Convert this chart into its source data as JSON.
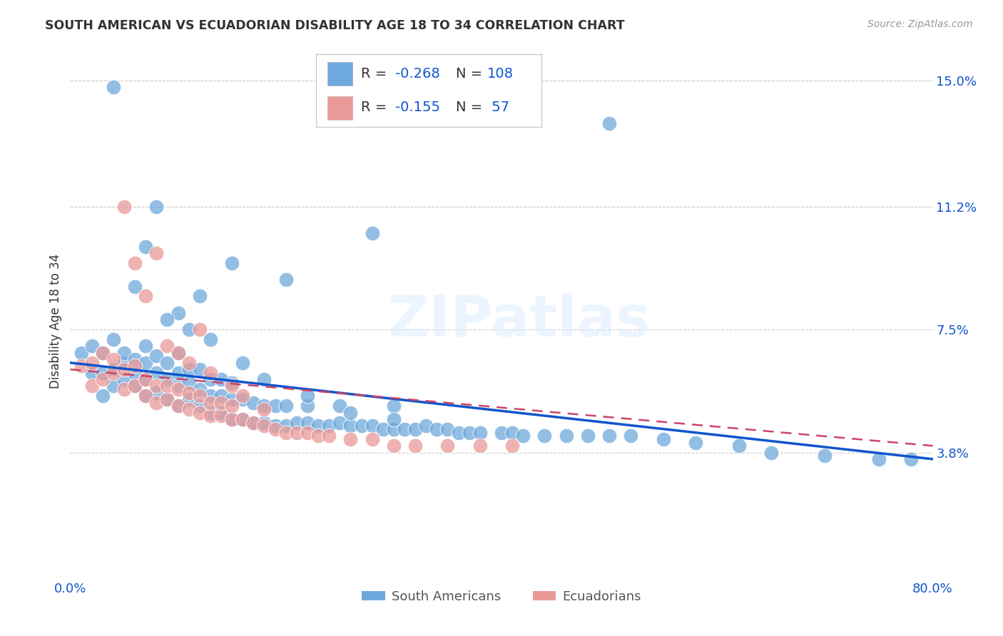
{
  "title": "SOUTH AMERICAN VS ECUADORIAN DISABILITY AGE 18 TO 34 CORRELATION CHART",
  "source": "Source: ZipAtlas.com",
  "ylabel": "Disability Age 18 to 34",
  "xlim": [
    0.0,
    0.8
  ],
  "ylim": [
    0.0,
    0.155
  ],
  "yticks": [
    0.038,
    0.075,
    0.112,
    0.15
  ],
  "ytick_labels": [
    "3.8%",
    "7.5%",
    "11.2%",
    "15.0%"
  ],
  "blue_color": "#6fa8dc",
  "pink_color": "#ea9999",
  "trend_blue_color": "#1155cc",
  "trend_pink_color": "#cc4466",
  "legend_R_blue": "-0.268",
  "legend_N_blue": "108",
  "legend_R_pink": "-0.155",
  "legend_N_pink": "57",
  "watermark": "ZIPatlas",
  "legend_label_blue": "South Americans",
  "legend_label_pink": "Ecuadorians",
  "blue_trend_x0": 0.0,
  "blue_trend_y0": 0.065,
  "blue_trend_x1": 0.8,
  "blue_trend_y1": 0.036,
  "pink_trend_x0": 0.0,
  "pink_trend_y0": 0.063,
  "pink_trend_x1": 0.8,
  "pink_trend_y1": 0.04,
  "blue_x": [
    0.01,
    0.02,
    0.02,
    0.03,
    0.03,
    0.03,
    0.04,
    0.04,
    0.04,
    0.05,
    0.05,
    0.05,
    0.06,
    0.06,
    0.06,
    0.07,
    0.07,
    0.07,
    0.07,
    0.08,
    0.08,
    0.08,
    0.09,
    0.09,
    0.09,
    0.1,
    0.1,
    0.1,
    0.1,
    0.11,
    0.11,
    0.11,
    0.12,
    0.12,
    0.12,
    0.13,
    0.13,
    0.13,
    0.14,
    0.14,
    0.14,
    0.15,
    0.15,
    0.15,
    0.16,
    0.16,
    0.17,
    0.17,
    0.18,
    0.18,
    0.19,
    0.19,
    0.2,
    0.2,
    0.21,
    0.22,
    0.22,
    0.23,
    0.24,
    0.25,
    0.25,
    0.26,
    0.27,
    0.28,
    0.29,
    0.3,
    0.3,
    0.31,
    0.32,
    0.33,
    0.34,
    0.35,
    0.36,
    0.37,
    0.38,
    0.4,
    0.41,
    0.42,
    0.44,
    0.46,
    0.48,
    0.5,
    0.52,
    0.55,
    0.58,
    0.62,
    0.65,
    0.7,
    0.75,
    0.78,
    0.04,
    0.08,
    0.28,
    0.5,
    0.2,
    0.15,
    0.1,
    0.12,
    0.07,
    0.06,
    0.09,
    0.11,
    0.13,
    0.16,
    0.18,
    0.22,
    0.26,
    0.3
  ],
  "blue_y": [
    0.068,
    0.062,
    0.07,
    0.055,
    0.062,
    0.068,
    0.058,
    0.063,
    0.072,
    0.065,
    0.06,
    0.068,
    0.058,
    0.062,
    0.066,
    0.055,
    0.06,
    0.065,
    0.07,
    0.056,
    0.062,
    0.067,
    0.054,
    0.06,
    0.065,
    0.052,
    0.058,
    0.062,
    0.068,
    0.054,
    0.059,
    0.063,
    0.052,
    0.057,
    0.063,
    0.05,
    0.055,
    0.06,
    0.05,
    0.055,
    0.06,
    0.048,
    0.054,
    0.059,
    0.048,
    0.054,
    0.047,
    0.053,
    0.047,
    0.052,
    0.046,
    0.052,
    0.046,
    0.052,
    0.047,
    0.047,
    0.052,
    0.046,
    0.046,
    0.047,
    0.052,
    0.046,
    0.046,
    0.046,
    0.045,
    0.045,
    0.052,
    0.045,
    0.045,
    0.046,
    0.045,
    0.045,
    0.044,
    0.044,
    0.044,
    0.044,
    0.044,
    0.043,
    0.043,
    0.043,
    0.043,
    0.043,
    0.043,
    0.042,
    0.041,
    0.04,
    0.038,
    0.037,
    0.036,
    0.036,
    0.148,
    0.112,
    0.104,
    0.137,
    0.09,
    0.095,
    0.08,
    0.085,
    0.1,
    0.088,
    0.078,
    0.075,
    0.072,
    0.065,
    0.06,
    0.055,
    0.05,
    0.048
  ],
  "pink_x": [
    0.01,
    0.02,
    0.02,
    0.03,
    0.03,
    0.04,
    0.04,
    0.05,
    0.05,
    0.06,
    0.06,
    0.07,
    0.07,
    0.08,
    0.08,
    0.09,
    0.09,
    0.1,
    0.1,
    0.11,
    0.11,
    0.12,
    0.12,
    0.13,
    0.13,
    0.14,
    0.14,
    0.15,
    0.15,
    0.16,
    0.17,
    0.18,
    0.19,
    0.2,
    0.21,
    0.22,
    0.23,
    0.24,
    0.26,
    0.28,
    0.3,
    0.32,
    0.35,
    0.38,
    0.41,
    0.08,
    0.12,
    0.05,
    0.06,
    0.07,
    0.09,
    0.1,
    0.11,
    0.13,
    0.15,
    0.16,
    0.18
  ],
  "pink_y": [
    0.064,
    0.058,
    0.065,
    0.06,
    0.068,
    0.062,
    0.066,
    0.057,
    0.063,
    0.058,
    0.064,
    0.055,
    0.06,
    0.053,
    0.058,
    0.054,
    0.058,
    0.052,
    0.057,
    0.051,
    0.056,
    0.05,
    0.055,
    0.049,
    0.053,
    0.049,
    0.053,
    0.048,
    0.052,
    0.048,
    0.047,
    0.046,
    0.045,
    0.044,
    0.044,
    0.044,
    0.043,
    0.043,
    0.042,
    0.042,
    0.04,
    0.04,
    0.04,
    0.04,
    0.04,
    0.098,
    0.075,
    0.112,
    0.095,
    0.085,
    0.07,
    0.068,
    0.065,
    0.062,
    0.058,
    0.055,
    0.051
  ]
}
